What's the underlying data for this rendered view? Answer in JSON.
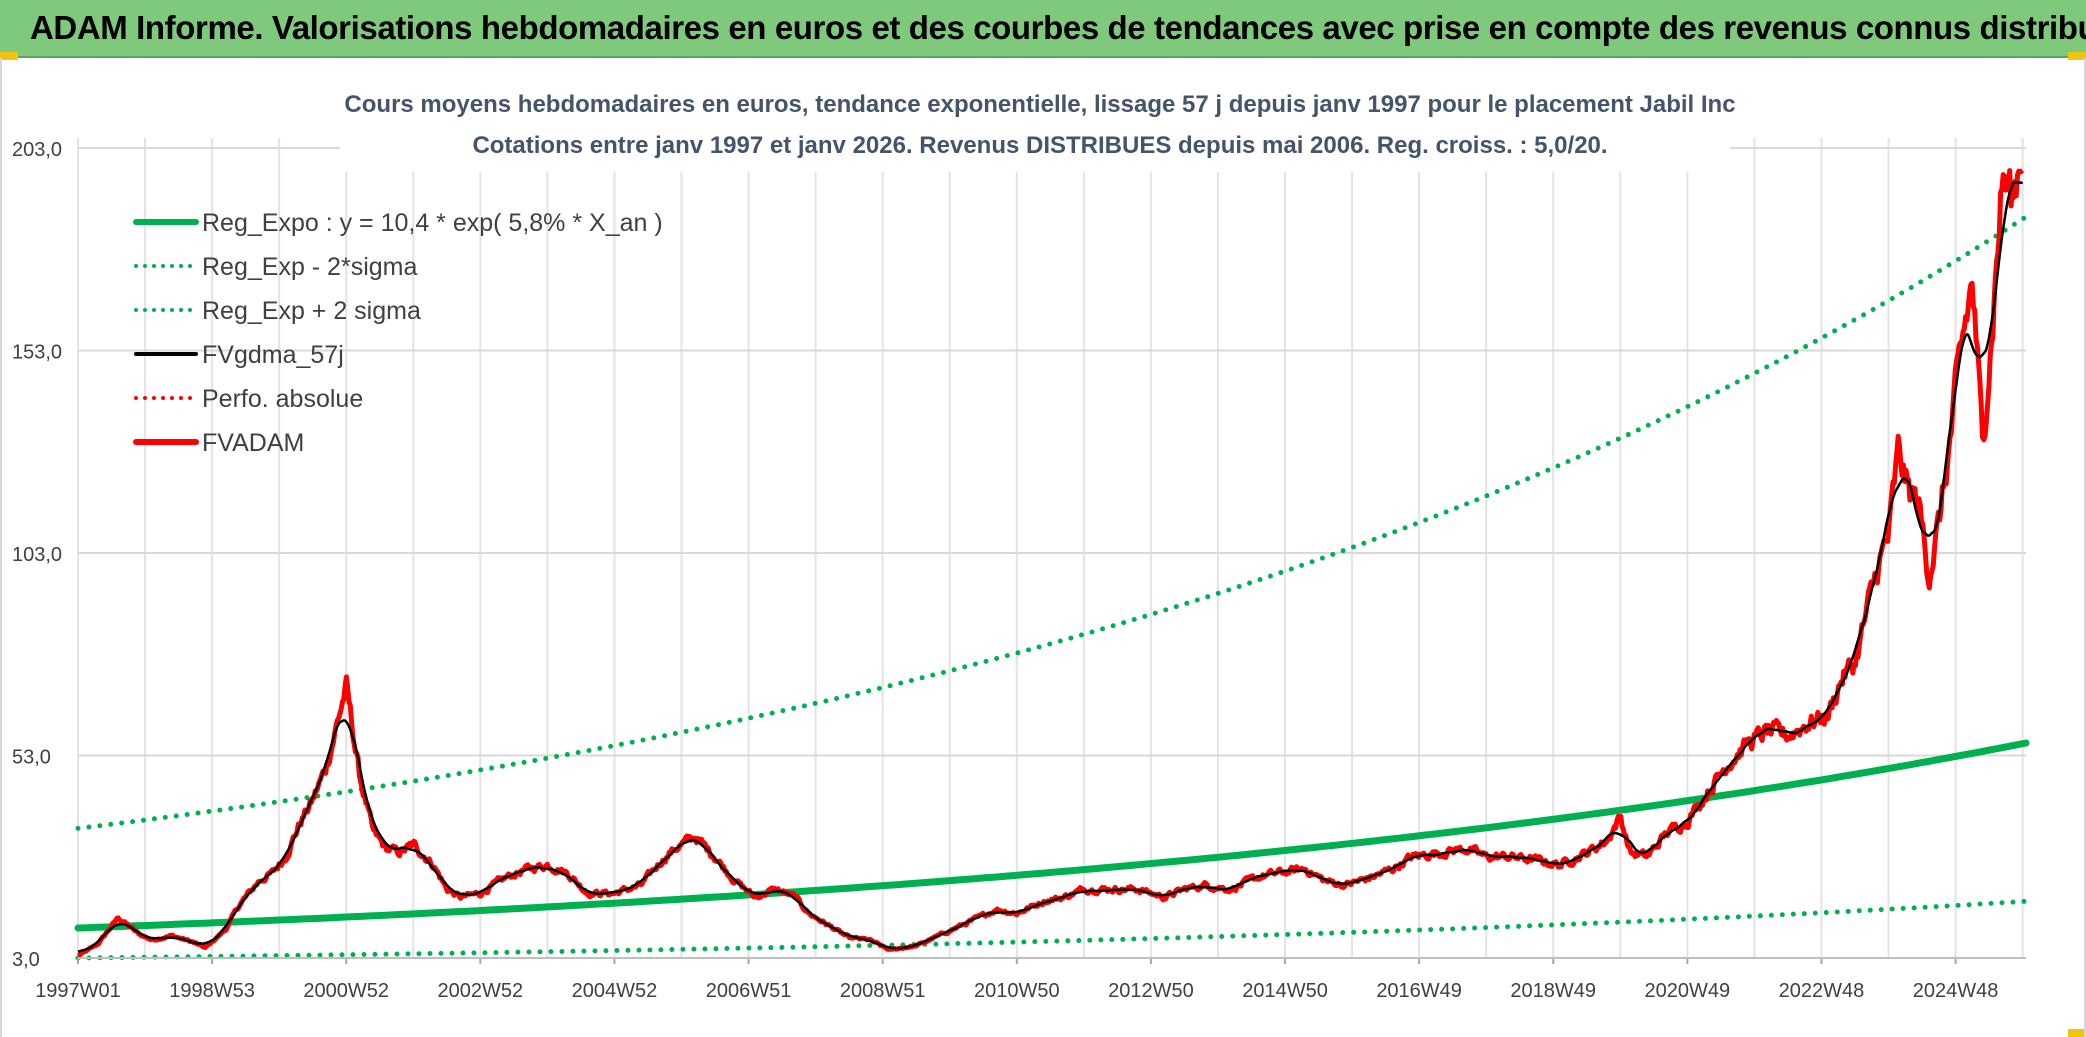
{
  "banner": {
    "title": "ADAM Informe. Valorisations hebdomadaires en euros et des courbes de tendances avec prise en compte des revenus connus distribués"
  },
  "chart_data": {
    "type": "line",
    "title_line1": "Cours moyens hebdomadaires en euros, tendance exponentielle, lissage 57 j depuis janv 1997 pour le placement Jabil Inc",
    "title_line2": "Cotations entre janv 1997 et janv 2026. Revenus DISTRIBUES depuis mai 2006. Reg. croiss. : 5,0/20.",
    "y_ticks": [
      "3,0",
      "53,0",
      "103,0",
      "153,0",
      "203,0"
    ],
    "ylim": [
      3,
      203
    ],
    "x_ticks": [
      "1997W01",
      "1998W53",
      "2000W52",
      "2002W52",
      "2004W52",
      "2006W51",
      "2008W51",
      "2010W50",
      "2012W50",
      "2014W50",
      "2016W49",
      "2018W49",
      "2020W49",
      "2022W48",
      "2024W48"
    ],
    "x_tick_years": [
      1997.0,
      1999.0,
      2001.0,
      2003.0,
      2005.0,
      2007.0,
      2009.0,
      2011.0,
      2013.0,
      2015.0,
      2017.0,
      2019.0,
      2021.0,
      2023.0,
      2025.0
    ],
    "xlim": [
      1997.0,
      2026.05
    ],
    "legend": [
      {
        "label": "Reg_Expo : y = 10,4 * exp( 5,8% *  X_an )",
        "color": "#00b050",
        "style": "solid-thick"
      },
      {
        "label": "Reg_Exp - 2*sigma",
        "color": "#00b050",
        "style": "dotted"
      },
      {
        "label": "Reg_Exp + 2 sigma",
        "color": "#00b050",
        "style": "dotted"
      },
      {
        "label": "FVgdma_57j",
        "color": "#000000",
        "style": "solid"
      },
      {
        "label": "Perfo. absolue",
        "color": "#ff0000",
        "style": "dotted"
      },
      {
        "label": "FVADAM",
        "color": "#ff0000",
        "style": "solid-thick"
      }
    ],
    "series": [
      {
        "name": "Reg_Expo",
        "formula": "10.4*exp(0.058*X_an)",
        "x": [
          1997.0,
          2026.05
        ],
        "start_value": 10.4
      },
      {
        "name": "Reg_Exp - 2*sigma",
        "x": [
          1997.0,
          2026.05
        ],
        "start_value": 3.0,
        "end_value": 17.0
      },
      {
        "name": "Reg_Exp + 2 sigma",
        "x": [
          1997.0,
          2026.05
        ],
        "start_value": 35.0,
        "end_value": 186.0
      },
      {
        "name": "FVADAM",
        "x": [
          1997.0,
          1997.3,
          1997.6,
          1997.9,
          1998.1,
          1998.4,
          1998.7,
          1998.9,
          1999.2,
          1999.4,
          1999.7,
          1999.9,
          2000.1,
          2000.3,
          2000.5,
          2000.7,
          2000.85,
          2001.0,
          2001.2,
          2001.4,
          2001.6,
          2001.8,
          2002.0,
          2002.3,
          2002.5,
          2002.7,
          2003.0,
          2003.4,
          2003.7,
          2004.0,
          2004.3,
          2004.6,
          2005.0,
          2005.4,
          2005.7,
          2005.9,
          2006.2,
          2006.5,
          2006.8,
          2007.1,
          2007.4,
          2007.7,
          2007.9,
          2008.2,
          2008.5,
          2008.8,
          2009.1,
          2009.5,
          2009.9,
          2010.3,
          2010.7,
          2011.0,
          2011.4,
          2011.7,
          2012.0,
          2012.4,
          2012.8,
          2013.2,
          2013.5,
          2013.8,
          2014.2,
          2014.6,
          2014.9,
          2015.3,
          2015.6,
          2015.9,
          2016.3,
          2016.6,
          2016.9,
          2017.3,
          2017.7,
          2018.0,
          2018.4,
          2018.8,
          2019.1,
          2019.5,
          2019.8,
          2020.0,
          2020.15,
          2020.4,
          2020.7,
          2021.0,
          2021.3,
          2021.6,
          2021.9,
          2022.2,
          2022.5,
          2022.8,
          2023.1,
          2023.3,
          2023.5,
          2023.7,
          2023.85,
          2024.0,
          2024.15,
          2024.3,
          2024.45,
          2024.6,
          2024.75,
          2024.9,
          2025.1,
          2025.25,
          2025.4,
          2025.55,
          2025.7,
          2025.85,
          2026.0
        ],
        "values": [
          3.5,
          6.5,
          13,
          9,
          7.5,
          8.5,
          7,
          5.5,
          10,
          16,
          22,
          24,
          28,
          36,
          42,
          50,
          60,
          70,
          48,
          34,
          30,
          29,
          31,
          26,
          20,
          18,
          19,
          23,
          25,
          26,
          24,
          19,
          19,
          21,
          27,
          30,
          33,
          28,
          22,
          18,
          20,
          18,
          14,
          11,
          8,
          7.5,
          5,
          6,
          9,
          12,
          15,
          14,
          17,
          18,
          20,
          20,
          20,
          18,
          20,
          21,
          20,
          23,
          24,
          25,
          22,
          21,
          23,
          25,
          28,
          29,
          30,
          28,
          28,
          27,
          26,
          29,
          32,
          38,
          29,
          28,
          34,
          37,
          44,
          51,
          56,
          59,
          58,
          61,
          63,
          72,
          76,
          90,
          100,
          107,
          128,
          118,
          115,
          98,
          110,
          128,
          155,
          170,
          130,
          160,
          196,
          190,
          205
        ]
      },
      {
        "name": "FVgdma_57j",
        "description": "57-day smoothed average of FVADAM"
      }
    ]
  }
}
